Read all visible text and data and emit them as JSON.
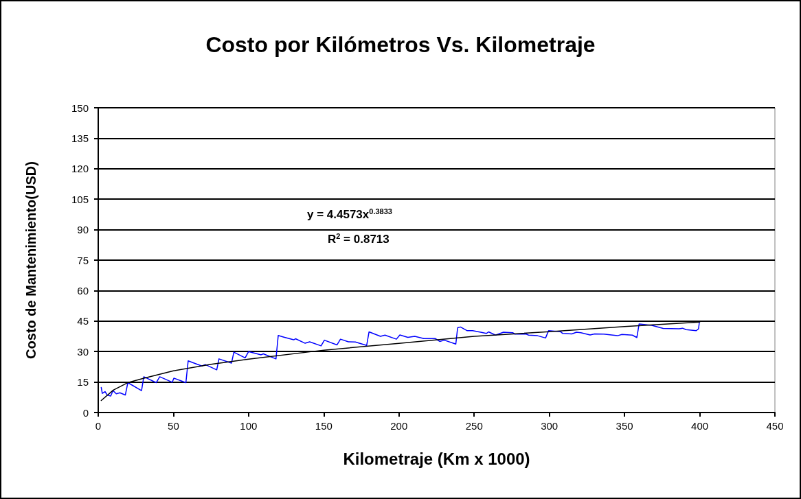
{
  "chart_data": {
    "type": "line",
    "title": "Costo por Kilómetros Vs. Kilometraje",
    "xlabel": "Kilometraje (Km x 1000)",
    "ylabel": "Costo de Mantenimiento(USD)",
    "annotations": [
      "y = 4.4573x$^{0.3833}$",
      "R$^{2}$ = 0.8713"
    ],
    "xlim": [
      0,
      450
    ],
    "xticks": [
      0,
      50,
      100,
      150,
      200,
      250,
      300,
      350,
      400,
      450
    ],
    "ylim": [
      0,
      150
    ],
    "yticks": [
      0,
      15,
      30,
      45,
      60,
      75,
      90,
      105,
      120,
      135,
      150
    ],
    "grid": "y",
    "marker": "none",
    "line_style": "solid",
    "series": [
      {
        "color": "#0000ff",
        "x": [
          2,
          2.7,
          4.5,
          6,
          8.3,
          9.8,
          12,
          14.4,
          18,
          19.7,
          28.8,
          30.3,
          38.6,
          40.9,
          49.2,
          50.3,
          58.3,
          59.8,
          68.9,
          71.2,
          78.8,
          80.3,
          88.6,
          90.2,
          97.7,
          100,
          108.3,
          109.8,
          118.2,
          119.7,
          123.5,
          130,
          131.2,
          137.6,
          140.6,
          148.2,
          150.4,
          158.8,
          161.1,
          166.4,
          171,
          178.5,
          180.1,
          187.7,
          190.7,
          198.3,
          200.6,
          205.9,
          210.5,
          216.5,
          224.1,
          227.1,
          230.2,
          237.8,
          239,
          240.9,
          245.2,
          249,
          254.3,
          258.1,
          259.6,
          264.2,
          269.5,
          275.6,
          277.1,
          284.7,
          286.2,
          292.2,
          297.5,
          299.5,
          307.4,
          308.9,
          315,
          318,
          321,
          327.1,
          330.1,
          336.2,
          345.3,
          348.3,
          355.2,
          358.2,
          359.7,
          368.1,
          375.7,
          386.3,
          388.6,
          390.9,
          397.7,
          399.2,
          399.7
        ],
        "values": [
          12.3,
          9.4,
          10.3,
          8.6,
          8.1,
          10.8,
          9.2,
          9.7,
          8.6,
          14.7,
          10.8,
          17.6,
          14.7,
          17.6,
          14.9,
          16.9,
          14.7,
          25.4,
          22.9,
          23.6,
          21.0,
          26.4,
          24.3,
          29.7,
          26.9,
          30,
          28.4,
          28.9,
          26.4,
          37.9,
          37.1,
          35.8,
          36.3,
          34.1,
          34.8,
          32.8,
          35.6,
          33.3,
          36.1,
          34.8,
          34.7,
          33.0,
          39.7,
          37.5,
          38.1,
          36.1,
          38.2,
          37.0,
          37.5,
          36.4,
          36.4,
          35.0,
          35.6,
          33.7,
          41.7,
          42.1,
          40.3,
          40.3,
          39.5,
          38.9,
          39.7,
          38.1,
          39.5,
          39.3,
          38.6,
          38.6,
          38.1,
          37.8,
          36.7,
          40.3,
          39.8,
          38.9,
          38.7,
          39.5,
          39.3,
          38.2,
          38.7,
          38.6,
          37.8,
          38.4,
          38.1,
          36.9,
          43.6,
          42.9,
          41.4,
          41.2,
          41.5,
          40.8,
          40.3,
          41.2,
          44.0
        ]
      },
      {
        "color": "#000000",
        "x": [
          2,
          10,
          20,
          30,
          50,
          75,
          100,
          150,
          200,
          250,
          300,
          350,
          400
        ],
        "values": [
          5.9,
          11,
          14.8,
          16.8,
          20.5,
          23.7,
          26.3,
          30.7,
          34,
          37.5,
          39.8,
          42.3,
          44.5
        ]
      }
    ]
  }
}
